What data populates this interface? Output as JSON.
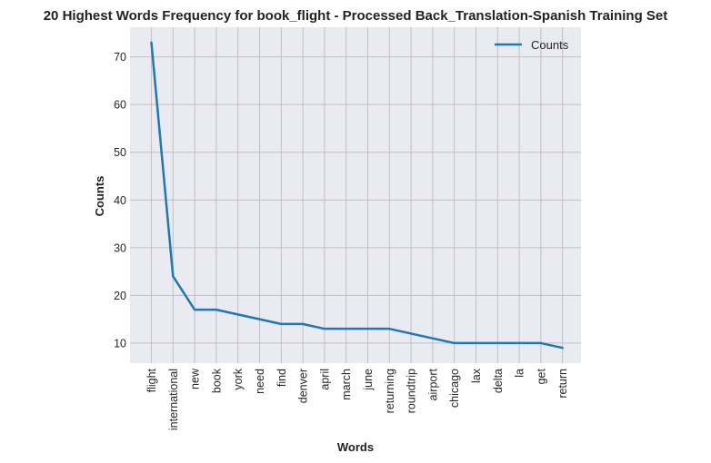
{
  "chart_data": {
    "type": "line",
    "title": "20 Highest Words Frequency for book_flight - Processed Back_Translation-Spanish Training Set",
    "xlabel": "Words",
    "ylabel": "Counts",
    "categories": [
      "flight",
      "international",
      "new",
      "book",
      "york",
      "need",
      "find",
      "denver",
      "april",
      "march",
      "june",
      "returning",
      "roundtrip",
      "airport",
      "chicago",
      "lax",
      "delta",
      "la",
      "get",
      "return"
    ],
    "series": [
      {
        "name": "Counts",
        "values": [
          73,
          24,
          17,
          17,
          16,
          15,
          14,
          14,
          13,
          13,
          13,
          13,
          12,
          11,
          10,
          10,
          10,
          10,
          10,
          9
        ],
        "color": "#1f77b4"
      }
    ],
    "yticks": [
      10,
      20,
      30,
      40,
      50,
      60,
      70
    ],
    "ylim": [
      5.8,
      76.2
    ],
    "grid": true,
    "legend": "top-right",
    "background": "#eaeaf2",
    "gridcolor": "#c0c0c0"
  }
}
